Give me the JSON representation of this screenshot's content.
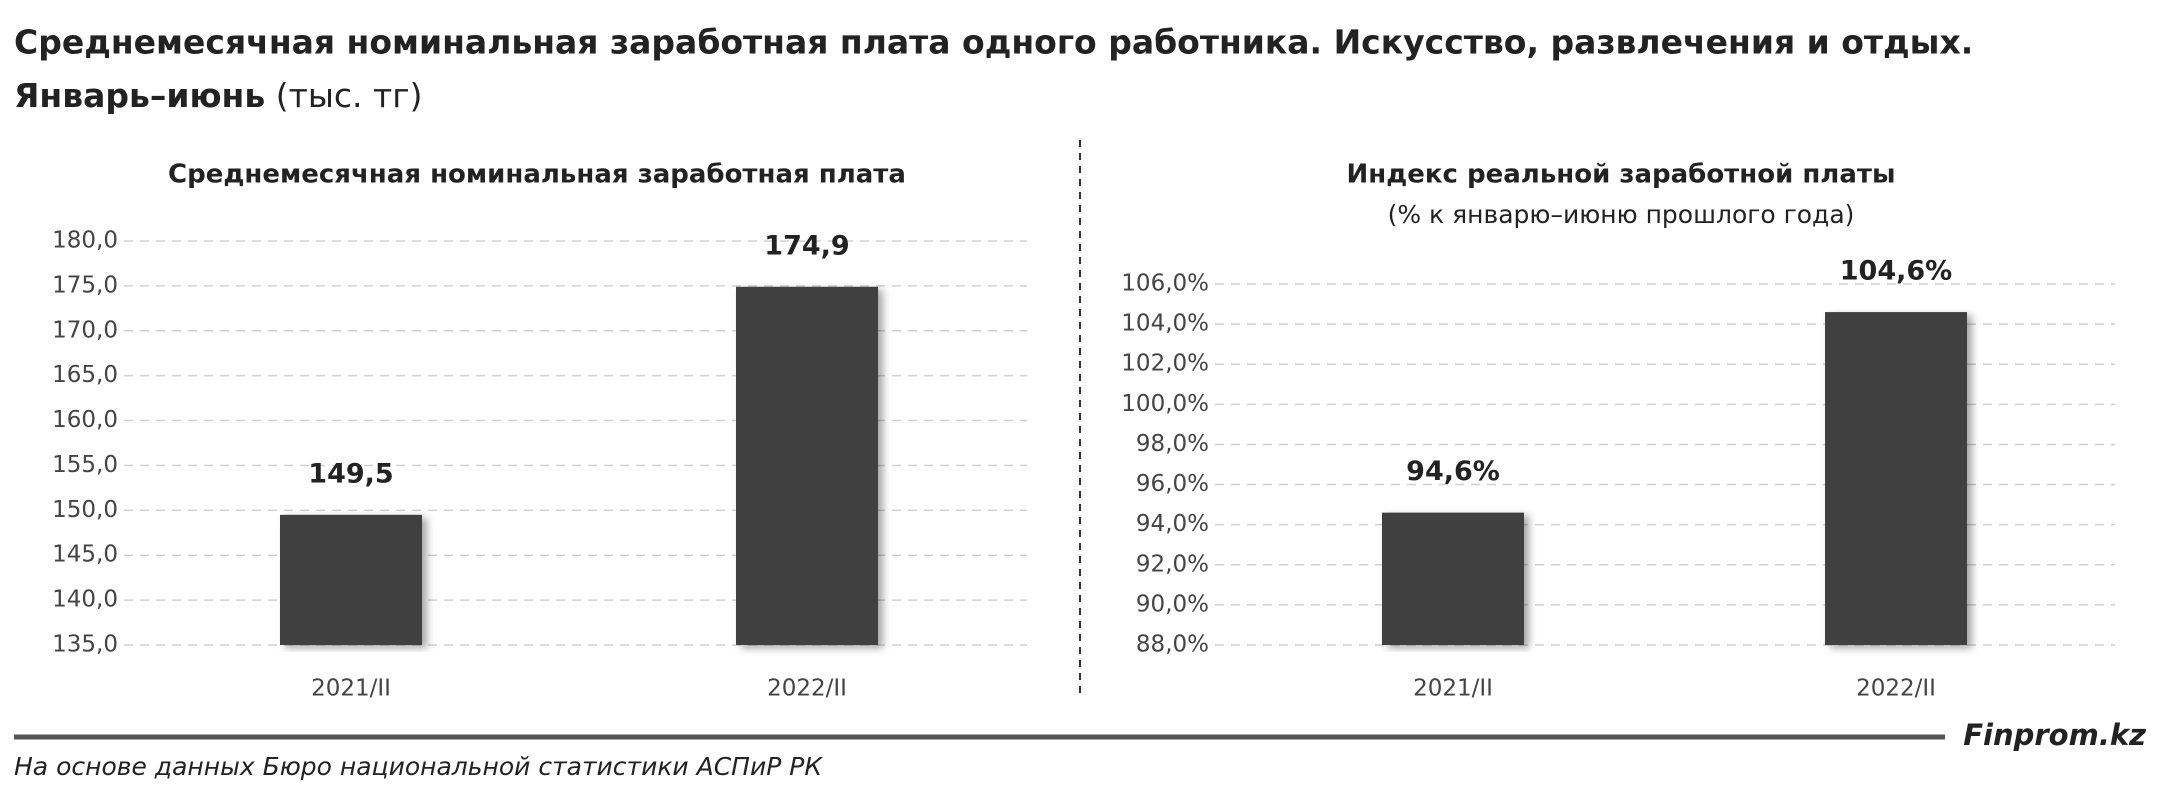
{
  "title": "Среднемесячная номинальная заработная плата одного работника. Искусство, развлечения и отдых.",
  "title_period": "Январь–июнь",
  "title_unit": "(тыс. тг)",
  "source": "На основе данных Бюро национальной статистики АСПиР РК",
  "brand": "Finprom.kz",
  "chart_data": [
    {
      "type": "bar",
      "title": "Среднемесячная номинальная заработная плата",
      "categories": [
        "2021/II",
        "2022/II"
      ],
      "values": [
        149.5,
        174.9
      ],
      "value_labels": [
        "149,5",
        "174,9"
      ],
      "color": "#404040",
      "ylim": [
        135,
        180
      ],
      "grid": true,
      "yticks": [
        {
          "value": 135,
          "label": "135,0"
        },
        {
          "value": 140,
          "label": "140,0"
        },
        {
          "value": 145,
          "label": "145,0"
        },
        {
          "value": 150,
          "label": "150,0"
        },
        {
          "value": 155,
          "label": "155,0"
        },
        {
          "value": 160,
          "label": "160,0"
        },
        {
          "value": 165,
          "label": "165,0"
        },
        {
          "value": 170,
          "label": "170,0"
        },
        {
          "value": 175,
          "label": "175,0"
        },
        {
          "value": 180,
          "label": "180,0"
        }
      ]
    },
    {
      "type": "bar",
      "title": "Индекс реальной заработной платы",
      "subtitle": "(% к январю–июню прошлого года)",
      "categories": [
        "2021/II",
        "2022/II"
      ],
      "values": [
        94.6,
        104.6
      ],
      "value_labels": [
        "94,6%",
        "104,6%"
      ],
      "color": "#404040",
      "ylim": [
        88,
        106
      ],
      "grid": true,
      "yticks": [
        {
          "value": 88,
          "label": "88,0%"
        },
        {
          "value": 90,
          "label": "90,0%"
        },
        {
          "value": 92,
          "label": "92,0%"
        },
        {
          "value": 94,
          "label": "94,0%"
        },
        {
          "value": 96,
          "label": "96,0%"
        },
        {
          "value": 98,
          "label": "98,0%"
        },
        {
          "value": 100,
          "label": "100,0%"
        },
        {
          "value": 102,
          "label": "102,0%"
        },
        {
          "value": 104,
          "label": "104,0%"
        },
        {
          "value": 106,
          "label": "106,0%"
        }
      ]
    }
  ]
}
